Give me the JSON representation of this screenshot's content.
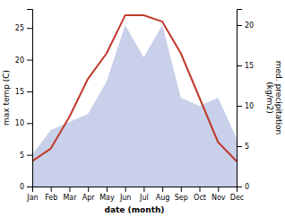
{
  "chart_data": {
    "type": "line",
    "categories": [
      "Jan",
      "Feb",
      "Mar",
      "Apr",
      "May",
      "Jun",
      "Jul",
      "Aug",
      "Sep",
      "Oct",
      "Nov",
      "Dec"
    ],
    "series": [
      {
        "type": "area",
        "axis": "y2",
        "color": "#c8d0ea",
        "values": [
          4,
          7,
          8,
          9,
          13,
          20,
          16,
          20,
          11,
          10,
          11,
          6
        ]
      },
      {
        "type": "line",
        "color": "#c0392b",
        "values": [
          4,
          6,
          11,
          17,
          21,
          27,
          27,
          26,
          21,
          14,
          7,
          4
        ]
      }
    ],
    "xlabel": "date (month)",
    "ylabel": "max temp (C)",
    "y2label": "med. precipitation\n(kg/m2)",
    "ylim": [
      0,
      28
    ],
    "yticks": [
      0,
      5,
      10,
      15,
      20,
      25
    ],
    "y2lim": [
      0,
      22
    ],
    "y2ticks": [
      0,
      5,
      10,
      15,
      20
    ],
    "grid": false
  }
}
